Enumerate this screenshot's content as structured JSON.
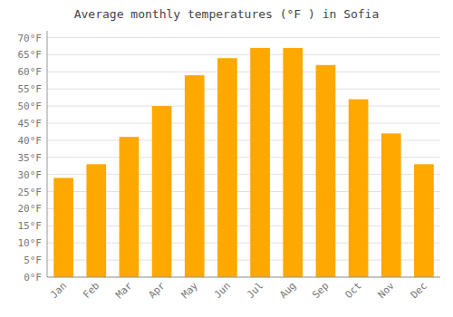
{
  "chart_data": {
    "type": "bar",
    "title": "Average monthly temperatures (°F ) in Sofia",
    "categories": [
      "Jan",
      "Feb",
      "Mar",
      "Apr",
      "May",
      "Jun",
      "Jul",
      "Aug",
      "Sep",
      "Oct",
      "Nov",
      "Dec"
    ],
    "values": [
      29,
      33,
      41,
      50,
      59,
      64,
      67,
      67,
      62,
      52,
      42,
      33
    ],
    "color": "#FFA800",
    "ylim": [
      0,
      72
    ],
    "yticks": [
      {
        "value": 0,
        "label": "0°F"
      },
      {
        "value": 5,
        "label": "5°F"
      },
      {
        "value": 10,
        "label": "10°F"
      },
      {
        "value": 15,
        "label": "15°F"
      },
      {
        "value": 20,
        "label": "20°F"
      },
      {
        "value": 25,
        "label": "25°F"
      },
      {
        "value": 30,
        "label": "30°F"
      },
      {
        "value": 35,
        "label": "35°F"
      },
      {
        "value": 40,
        "label": "40°F"
      },
      {
        "value": 45,
        "label": "45°F"
      },
      {
        "value": 50,
        "label": "50°F"
      },
      {
        "value": 55,
        "label": "55°F"
      },
      {
        "value": 60,
        "label": "60°F"
      },
      {
        "value": 65,
        "label": "65°F"
      },
      {
        "value": 70,
        "label": "70°F"
      }
    ],
    "grid": true
  }
}
